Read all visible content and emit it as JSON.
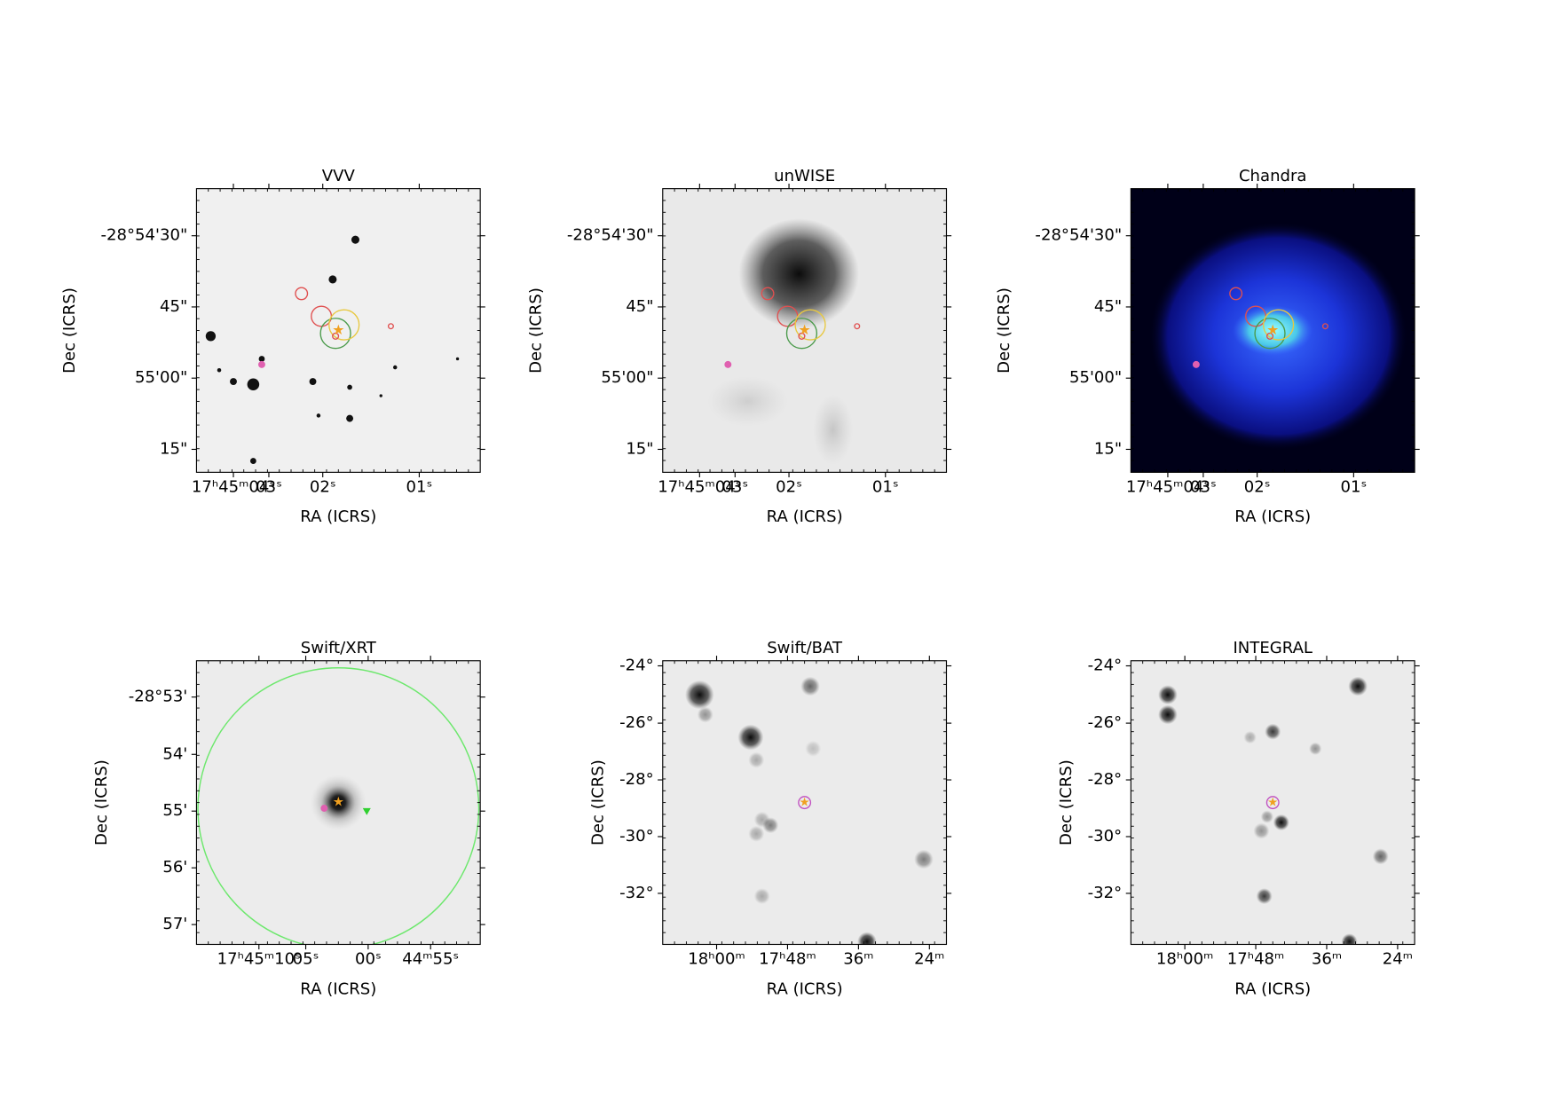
{
  "panels": [
    {
      "title": "VVV",
      "xlabel": "RA (ICRS)",
      "ylabel": "Dec (ICRS)",
      "xticks": [
        "17ʰ45ᵐ04ˢ",
        "03ˢ",
        "02ˢ",
        "01ˢ"
      ],
      "yticks": [
        "-28°54'30\"",
        "45\"",
        "55'00\"",
        "15\""
      ]
    },
    {
      "title": "unWISE",
      "xlabel": "RA (ICRS)",
      "ylabel": "Dec (ICRS)",
      "xticks": [
        "17ʰ45ᵐ04ˢ",
        "03ˢ",
        "02ˢ",
        "01ˢ"
      ],
      "yticks": [
        "-28°54'30\"",
        "45\"",
        "55'00\"",
        "15\""
      ]
    },
    {
      "title": "Chandra",
      "xlabel": "RA (ICRS)",
      "ylabel": "Dec (ICRS)",
      "xticks": [
        "17ʰ45ᵐ04ˢ",
        "03ˢ",
        "02ˢ",
        "01ˢ"
      ],
      "yticks": [
        "-28°54'30\"",
        "45\"",
        "55'00\"",
        "15\""
      ]
    },
    {
      "title": "Swift/XRT",
      "xlabel": "RA (ICRS)",
      "ylabel": "Dec (ICRS)",
      "xticks": [
        "17ʰ45ᵐ10ˢ",
        "05ˢ",
        "00ˢ",
        "44ᵐ55ˢ"
      ],
      "yticks": [
        "-28°53'",
        "54'",
        "55'",
        "56'",
        "57'"
      ]
    },
    {
      "title": "Swift/BAT",
      "xlabel": "RA (ICRS)",
      "ylabel": "Dec (ICRS)",
      "xticks": [
        "18ʰ00ᵐ",
        "17ʰ48ᵐ",
        "36ᵐ",
        "24ᵐ"
      ],
      "yticks": [
        "-24°",
        "-26°",
        "-28°",
        "-30°",
        "-32°"
      ]
    },
    {
      "title": "INTEGRAL",
      "xlabel": "RA (ICRS)",
      "ylabel": "Dec (ICRS)",
      "xticks": [
        "18ʰ00ᵐ",
        "17ʰ48ᵐ",
        "36ᵐ",
        "24ᵐ"
      ],
      "yticks": [
        "-24°",
        "-26°",
        "-28°",
        "-30°",
        "-32°"
      ]
    }
  ]
}
